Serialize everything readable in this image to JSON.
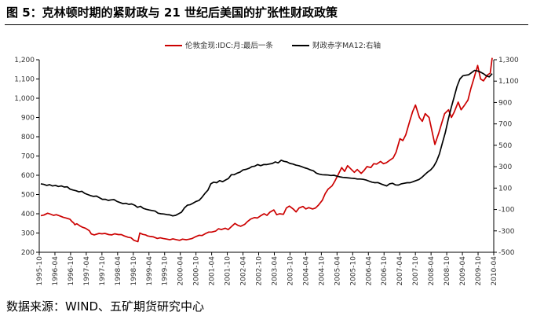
{
  "figure": {
    "title": "图 5：克林顿时期的紧财政与 21 世纪后美国的扩张性财政政策",
    "source": "数据来源：WIND、五矿期货研究中心"
  },
  "chart_data": {
    "type": "line",
    "left_axis": {
      "ylim": [
        200,
        1200
      ],
      "ticks": [
        "200",
        "300",
        "400",
        "500",
        "600",
        "700",
        "800",
        "900",
        "1,000",
        "1,100",
        "1,200"
      ]
    },
    "right_axis": {
      "ylim": [
        -500,
        1300
      ],
      "ticks": [
        "-500",
        "-300",
        "-100",
        "100",
        "300",
        "500",
        "700",
        "900",
        "1,100",
        "1,300"
      ]
    },
    "x_labels": [
      "1995-10",
      "1996-04",
      "1996-10",
      "1997-04",
      "1997-10",
      "1998-04",
      "1998-10",
      "1999-04",
      "1999-10",
      "2000-04",
      "2000-10",
      "2001-04",
      "2001-10",
      "2002-04",
      "2002-10",
      "2003-04",
      "2003-10",
      "2004-04",
      "2004-10",
      "2005-04",
      "2005-10",
      "2006-04",
      "2006-10",
      "2007-04",
      "2007-10",
      "2008-04",
      "2008-10",
      "2009-04",
      "2009-10",
      "2010-04"
    ],
    "series": [
      {
        "name": "伦敦金现:IDC:月:最后一条",
        "axis": "left",
        "color": "#cc0000",
        "points": [
          [
            0,
            390
          ],
          [
            0.3,
            393
          ],
          [
            0.7,
            403
          ],
          [
            1,
            398
          ],
          [
            1.3,
            392
          ],
          [
            1.6,
            395
          ],
          [
            2,
            388
          ],
          [
            2.3,
            382
          ],
          [
            2.6,
            378
          ],
          [
            3,
            372
          ],
          [
            3.2,
            360
          ],
          [
            3.4,
            352
          ],
          [
            3.5,
            343
          ],
          [
            3.7,
            348
          ],
          [
            4,
            338
          ],
          [
            4.3,
            330
          ],
          [
            4.6,
            325
          ],
          [
            5,
            312
          ],
          [
            5.2,
            295
          ],
          [
            5.5,
            290
          ],
          [
            6,
            298
          ],
          [
            6.3,
            296
          ],
          [
            6.6,
            298
          ],
          [
            7,
            292
          ],
          [
            7.3,
            290
          ],
          [
            7.6,
            296
          ],
          [
            8,
            292
          ],
          [
            8.3,
            292
          ],
          [
            8.6,
            285
          ],
          [
            9,
            278
          ],
          [
            9.3,
            275
          ],
          [
            9.6,
            262
          ],
          [
            10,
            255
          ],
          [
            10.2,
            300
          ],
          [
            10.5,
            293
          ],
          [
            10.8,
            290
          ],
          [
            11,
            285
          ],
          [
            11.3,
            282
          ],
          [
            11.6,
            280
          ],
          [
            12,
            272
          ],
          [
            12.3,
            275
          ],
          [
            12.6,
            272
          ],
          [
            13,
            268
          ],
          [
            13.3,
            265
          ],
          [
            13.6,
            270
          ],
          [
            14,
            265
          ],
          [
            14.3,
            262
          ],
          [
            14.6,
            268
          ],
          [
            15,
            265
          ],
          [
            15.3,
            268
          ],
          [
            15.6,
            272
          ],
          [
            16,
            282
          ],
          [
            16.3,
            288
          ],
          [
            16.6,
            287
          ],
          [
            17,
            298
          ],
          [
            17.3,
            305
          ],
          [
            17.6,
            305
          ],
          [
            18,
            310
          ],
          [
            18.3,
            322
          ],
          [
            18.6,
            318
          ],
          [
            19,
            325
          ],
          [
            19.3,
            318
          ],
          [
            19.6,
            332
          ],
          [
            20,
            350
          ],
          [
            20.3,
            340
          ],
          [
            20.6,
            335
          ],
          [
            21,
            345
          ],
          [
            21.3,
            360
          ],
          [
            21.6,
            372
          ],
          [
            22,
            380
          ],
          [
            22.3,
            378
          ],
          [
            22.6,
            388
          ],
          [
            23,
            400
          ],
          [
            23.3,
            392
          ],
          [
            23.6,
            408
          ],
          [
            24,
            420
          ],
          [
            24.3,
            395
          ],
          [
            24.6,
            400
          ],
          [
            25,
            397
          ],
          [
            25.3,
            430
          ],
          [
            25.6,
            440
          ],
          [
            26,
            425
          ],
          [
            26.3,
            410
          ],
          [
            26.6,
            430
          ],
          [
            27,
            438
          ],
          [
            27.3,
            425
          ],
          [
            27.6,
            432
          ],
          [
            28,
            425
          ],
          [
            28.3,
            430
          ],
          [
            28.6,
            445
          ],
          [
            29,
            470
          ],
          [
            29.3,
            505
          ],
          [
            29.6,
            528
          ],
          [
            30,
            545
          ],
          [
            30.3,
            570
          ],
          [
            30.6,
            600
          ],
          [
            31,
            640
          ],
          [
            31.3,
            620
          ],
          [
            31.6,
            650
          ],
          [
            32,
            630
          ],
          [
            32.3,
            615
          ],
          [
            32.6,
            630
          ],
          [
            33,
            610
          ],
          [
            33.3,
            625
          ],
          [
            33.6,
            645
          ],
          [
            34,
            640
          ],
          [
            34.3,
            660
          ],
          [
            34.6,
            658
          ],
          [
            35,
            672
          ],
          [
            35.3,
            660
          ],
          [
            35.6,
            665
          ],
          [
            36,
            680
          ],
          [
            36.3,
            690
          ],
          [
            36.6,
            720
          ],
          [
            37,
            790
          ],
          [
            37.3,
            780
          ],
          [
            37.6,
            810
          ],
          [
            38,
            880
          ],
          [
            38.3,
            930
          ],
          [
            38.6,
            965
          ],
          [
            39,
            900
          ],
          [
            39.3,
            880
          ],
          [
            39.6,
            920
          ],
          [
            40,
            900
          ],
          [
            40.3,
            830
          ],
          [
            40.6,
            760
          ],
          [
            41,
            820
          ],
          [
            41.3,
            870
          ],
          [
            41.6,
            920
          ],
          [
            42,
            940
          ],
          [
            42.3,
            900
          ],
          [
            42.6,
            930
          ],
          [
            43,
            980
          ],
          [
            43.3,
            940
          ],
          [
            43.6,
            960
          ],
          [
            44,
            990
          ],
          [
            44.3,
            1050
          ],
          [
            44.6,
            1100
          ],
          [
            45,
            1170
          ],
          [
            45.3,
            1100
          ],
          [
            45.6,
            1090
          ],
          [
            46,
            1120
          ],
          [
            46.3,
            1130
          ],
          [
            46.5,
            1210
          ]
        ]
      },
      {
        "name": "财政赤字MA12:右轴",
        "axis": "right",
        "color": "#000000",
        "points": [
          [
            0,
            140
          ],
          [
            0.5,
            135
          ],
          [
            1,
            125
          ],
          [
            1.5,
            132
          ],
          [
            2,
            120
          ],
          [
            2.5,
            125
          ],
          [
            3,
            115
          ],
          [
            3.5,
            120
          ],
          [
            4,
            110
          ],
          [
            4.5,
            112
          ],
          [
            5,
            90
          ],
          [
            5.5,
            82
          ],
          [
            6,
            75
          ],
          [
            6.5,
            65
          ],
          [
            7,
            70
          ],
          [
            7.5,
            50
          ],
          [
            8,
            40
          ],
          [
            8.5,
            30
          ],
          [
            9,
            22
          ],
          [
            9.5,
            25
          ],
          [
            10,
            10
          ],
          [
            10.5,
            -5
          ],
          [
            11,
            -5
          ],
          [
            11.5,
            -15
          ],
          [
            12,
            -10
          ],
          [
            12.5,
            -8
          ],
          [
            13,
            -25
          ],
          [
            13.5,
            -35
          ],
          [
            14,
            -45
          ],
          [
            14.5,
            -42
          ],
          [
            15,
            -52
          ],
          [
            15.5,
            -48
          ],
          [
            16,
            -60
          ],
          [
            16.5,
            -80
          ],
          [
            17,
            -70
          ],
          [
            17.5,
            -90
          ],
          [
            18,
            -98
          ],
          [
            18.5,
            -105
          ],
          [
            19,
            -110
          ],
          [
            19.5,
            -115
          ],
          [
            20,
            -135
          ],
          [
            20.5,
            -140
          ],
          [
            21,
            -142
          ],
          [
            21.5,
            -148
          ],
          [
            22,
            -150
          ],
          [
            22.5,
            -160
          ],
          [
            23,
            -155
          ],
          [
            23.5,
            -140
          ],
          [
            24,
            -125
          ],
          [
            24.5,
            -85
          ],
          [
            25,
            -60
          ],
          [
            25.5,
            -55
          ],
          [
            26,
            -40
          ],
          [
            26.5,
            -25
          ],
          [
            27,
            -15
          ],
          [
            27.5,
            15
          ],
          [
            28,
            50
          ],
          [
            28.5,
            80
          ],
          [
            29,
            140
          ],
          [
            29.5,
            155
          ],
          [
            30,
            150
          ],
          [
            30.5,
            170
          ],
          [
            31,
            160
          ],
          [
            31.5,
            175
          ],
          [
            32,
            190
          ],
          [
            32.5,
            225
          ],
          [
            33,
            225
          ],
          [
            33.5,
            240
          ],
          [
            34,
            250
          ],
          [
            34.5,
            270
          ],
          [
            35,
            275
          ],
          [
            35.5,
            285
          ],
          [
            36,
            300
          ],
          [
            36.5,
            305
          ],
          [
            37,
            320
          ],
          [
            37.5,
            310
          ],
          [
            38,
            320
          ],
          [
            38.5,
            320
          ],
          [
            39,
            325
          ],
          [
            39.5,
            330
          ],
          [
            40,
            345
          ],
          [
            40.5,
            335
          ],
          [
            41,
            360
          ],
          [
            41.5,
            350
          ],
          [
            42,
            345
          ],
          [
            42.5,
            330
          ],
          [
            43,
            325
          ],
          [
            43.5,
            315
          ],
          [
            44,
            310
          ],
          [
            44.5,
            300
          ],
          [
            45,
            290
          ],
          [
            45.5,
            282
          ],
          [
            46,
            270
          ],
          [
            46.5,
            262
          ],
          [
            47,
            240
          ],
          [
            47.5,
            230
          ],
          [
            48,
            225
          ],
          [
            48.5,
            224
          ],
          [
            49,
            222
          ],
          [
            49.5,
            218
          ],
          [
            50,
            220
          ],
          [
            50.5,
            212
          ],
          [
            51,
            205
          ],
          [
            51.5,
            200
          ],
          [
            52,
            198
          ],
          [
            52.5,
            195
          ],
          [
            53,
            192
          ],
          [
            53.5,
            190
          ],
          [
            54,
            185
          ],
          [
            54.5,
            185
          ],
          [
            55,
            182
          ],
          [
            55.5,
            175
          ],
          [
            56,
            165
          ],
          [
            56.5,
            155
          ],
          [
            57,
            150
          ],
          [
            57.5,
            152
          ],
          [
            58,
            140
          ],
          [
            58.5,
            130
          ],
          [
            59,
            120
          ],
          [
            59.5,
            140
          ],
          [
            60,
            145
          ],
          [
            60.5,
            130
          ],
          [
            61,
            128
          ],
          [
            61.5,
            140
          ],
          [
            62,
            145
          ],
          [
            62.5,
            150
          ],
          [
            63,
            150
          ],
          [
            63.5,
            160
          ],
          [
            64,
            170
          ],
          [
            64.5,
            180
          ],
          [
            65,
            200
          ],
          [
            65.5,
            225
          ],
          [
            66,
            250
          ],
          [
            66.5,
            270
          ],
          [
            67,
            300
          ],
          [
            67.5,
            350
          ],
          [
            68,
            420
          ],
          [
            68.5,
            520
          ],
          [
            69,
            620
          ],
          [
            69.5,
            740
          ],
          [
            70,
            850
          ],
          [
            70.5,
            950
          ],
          [
            71,
            1050
          ],
          [
            71.5,
            1120
          ],
          [
            72,
            1150
          ],
          [
            72.5,
            1155
          ],
          [
            73,
            1160
          ],
          [
            73.5,
            1180
          ],
          [
            74,
            1200
          ],
          [
            74.5,
            1195
          ],
          [
            75,
            1185
          ],
          [
            75.5,
            1170
          ],
          [
            76,
            1150
          ],
          [
            76.5,
            1140
          ],
          [
            77,
            1170
          ]
        ]
      }
    ]
  }
}
